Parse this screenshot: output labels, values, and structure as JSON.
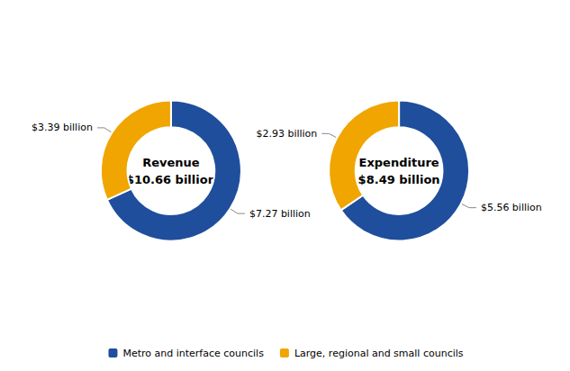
{
  "chart_data": [
    {
      "type": "pie",
      "title": "Revenue",
      "subtitle": "$10.66 billion",
      "categories": [
        "Metro and interface councils",
        "Large, regional and small councils"
      ],
      "values": [
        7.27,
        3.39
      ],
      "value_labels": [
        "$7.27 billion",
        "$3.39 billion"
      ],
      "colors": [
        "#1F4E9C",
        "#F0A500"
      ],
      "data_labels": true,
      "legend": "bottom"
    },
    {
      "type": "pie",
      "title": "Expenditure",
      "subtitle": "$8.49 billion",
      "categories": [
        "Metro and interface councils",
        "Large, regional and small councils"
      ],
      "values": [
        5.56,
        2.93
      ],
      "value_labels": [
        "$5.56 billion",
        "$2.93 billion"
      ],
      "colors": [
        "#1F4E9C",
        "#F0A500"
      ],
      "data_labels": true,
      "legend": "bottom"
    }
  ]
}
